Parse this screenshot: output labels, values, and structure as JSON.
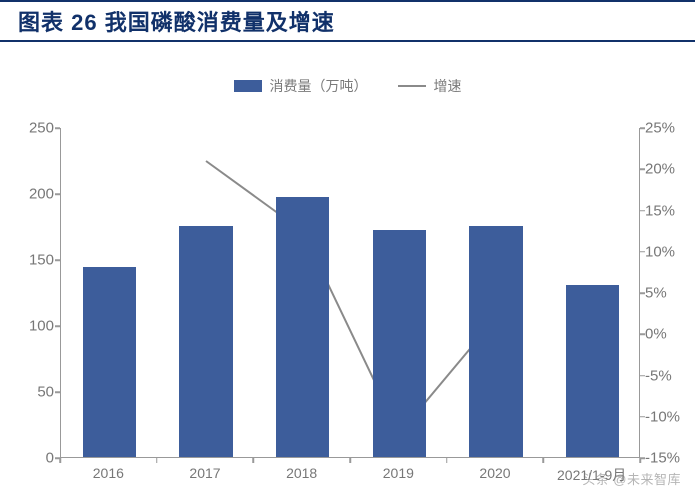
{
  "title": "图表 26   我国磷酸消费量及增速",
  "title_color": "#11316a",
  "legend": {
    "series1": {
      "label": "消费量（万吨）",
      "swatch_color": "#3d5d9b",
      "type": "bar"
    },
    "series2": {
      "label": "增速",
      "swatch_color": "#8a8a8a",
      "type": "line"
    }
  },
  "chart": {
    "type": "bar+line",
    "categories": [
      "2016",
      "2017",
      "2018",
      "2019",
      "2020",
      "2021/1-9月"
    ],
    "bars": {
      "values": [
        144,
        175,
        197,
        172,
        175,
        130
      ],
      "color": "#3d5d9b",
      "width_frac": 0.55
    },
    "line": {
      "values": [
        null,
        21,
        12.5,
        -12,
        2,
        null
      ],
      "color": "#8a8a8a",
      "stroke_width": 2
    },
    "y_left": {
      "min": 0,
      "max": 250,
      "step": 50,
      "labels": [
        "0",
        "50",
        "100",
        "150",
        "200",
        "250"
      ]
    },
    "y_right": {
      "min": -15,
      "max": 25,
      "step": 5,
      "labels": [
        "-15%",
        "-10%",
        "-5%",
        "0%",
        "5%",
        "10%",
        "15%",
        "20%",
        "25%"
      ]
    },
    "plot_bg": "#ffffff",
    "axis_color": "#999999",
    "tick_color": "#999999",
    "label_color": "#777777",
    "label_fontsize": 15
  },
  "watermark": "头条 @未来智库"
}
